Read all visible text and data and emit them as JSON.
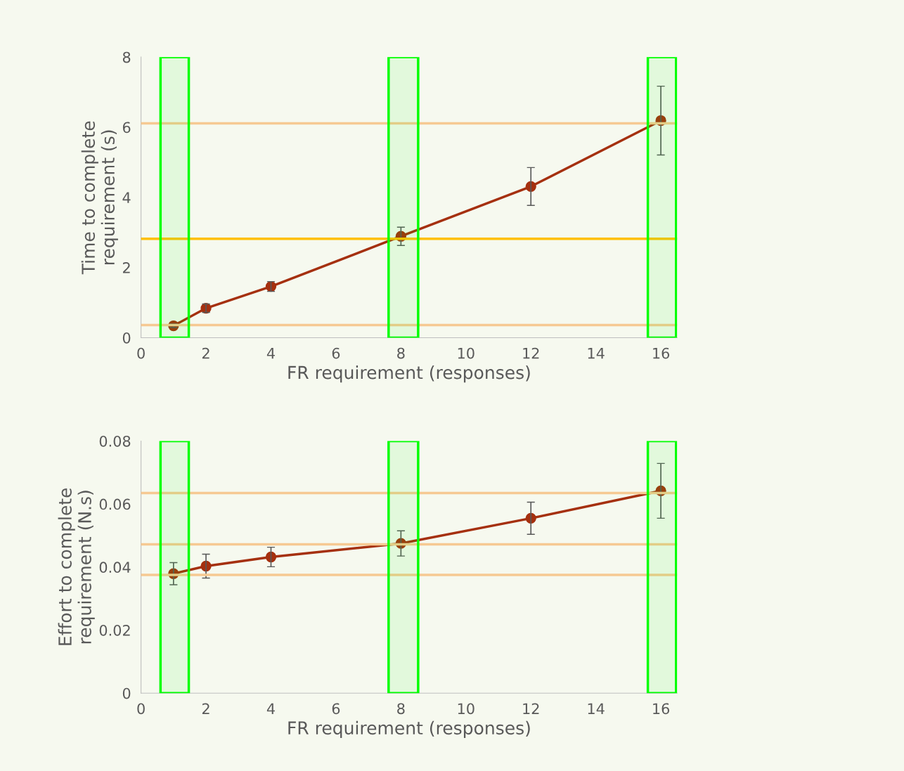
{
  "chart_data": [
    {
      "type": "line",
      "xlabel": "FR requirement (responses)",
      "ylabel": "Time to complete\nrequirement (s)",
      "x": [
        1,
        2,
        4,
        8,
        12,
        16
      ],
      "series": [
        {
          "color": "#a5300f",
          "values": [
            0.34,
            0.84,
            1.46,
            2.89,
            4.31,
            6.19
          ],
          "errors": [
            0.05,
            0.12,
            0.14,
            0.26,
            0.54,
            0.98
          ]
        }
      ],
      "marker": "circle",
      "line_style": "solid",
      "xlim": [
        0,
        16.5
      ],
      "xticks": [
        0,
        2,
        4,
        6,
        8,
        10,
        12,
        14,
        16
      ],
      "ylim": [
        0,
        8
      ],
      "yticks": [
        0,
        2,
        4,
        6,
        8
      ],
      "grid": false,
      "legend": false,
      "ref_lines": [
        {
          "axis": "y",
          "value": 6.11,
          "color": "#f6c992"
        },
        {
          "axis": "y",
          "value": 2.82,
          "color": "#ffc000"
        },
        {
          "axis": "y",
          "value": 0.36,
          "color": "#f6c992"
        }
      ],
      "bands": [
        {
          "axis": "x",
          "from": 0.6,
          "to": 1.47,
          "color": "#00ff00"
        },
        {
          "axis": "x",
          "from": 7.62,
          "to": 8.53,
          "color": "#00ff00"
        },
        {
          "axis": "x",
          "from": 15.6,
          "to": 16.47,
          "color": "#00ff00"
        }
      ]
    },
    {
      "type": "line",
      "xlabel": "FR requirement (responses)",
      "ylabel": "Effort to complete\nrequirement (N.s)",
      "x": [
        1,
        2,
        4,
        8,
        12,
        16
      ],
      "series": [
        {
          "color": "#a5300f",
          "values": [
            0.0379,
            0.0403,
            0.0432,
            0.0475,
            0.0555,
            0.0642
          ],
          "errors": [
            0.0035,
            0.0038,
            0.0031,
            0.004,
            0.0051,
            0.0087
          ]
        }
      ],
      "marker": "circle",
      "line_style": "solid",
      "xlim": [
        0,
        16.5
      ],
      "xticks": [
        0,
        2,
        4,
        6,
        8,
        10,
        12,
        14,
        16
      ],
      "ylim": [
        0,
        0.08
      ],
      "yticks": [
        {
          "value": 0,
          "label": "0"
        },
        0.02,
        0.04,
        0.06,
        0.08
      ],
      "grid": false,
      "legend": false,
      "ref_lines": [
        {
          "axis": "y",
          "value": 0.0635,
          "color": "#f6c992"
        },
        {
          "axis": "y",
          "value": 0.0472,
          "color": "#f6c992"
        },
        {
          "axis": "y",
          "value": 0.0375,
          "color": "#f6c992"
        }
      ],
      "bands": [
        {
          "axis": "x",
          "from": 0.6,
          "to": 1.47,
          "color": "#00ff00"
        },
        {
          "axis": "x",
          "from": 7.62,
          "to": 8.53,
          "color": "#00ff00"
        },
        {
          "axis": "x",
          "from": 15.6,
          "to": 16.47,
          "color": "#00ff00"
        }
      ]
    }
  ]
}
